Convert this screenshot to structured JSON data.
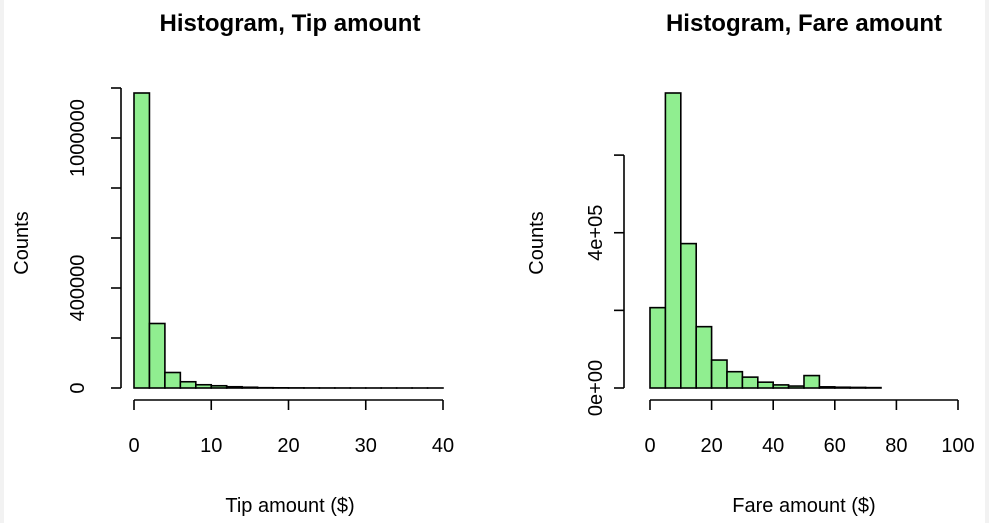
{
  "chart_data": [
    {
      "type": "bar",
      "title": "Histogram, Tip amount",
      "xlabel": "Tip amount ($)",
      "ylabel": "Counts",
      "xlim": [
        0,
        42
      ],
      "ylim": [
        0,
        1180000
      ],
      "xticks": [
        {
          "value": 0,
          "label": "0"
        },
        {
          "value": 10,
          "label": "10"
        },
        {
          "value": 20,
          "label": "20"
        },
        {
          "value": 30,
          "label": "30"
        },
        {
          "value": 40,
          "label": "40"
        }
      ],
      "yticks": [
        {
          "value": 0,
          "label": "0"
        },
        {
          "value": 200000,
          "label": ""
        },
        {
          "value": 400000,
          "label": "400000"
        },
        {
          "value": 600000,
          "label": ""
        },
        {
          "value": 800000,
          "label": ""
        },
        {
          "value": 1000000,
          "label": "1000000"
        },
        {
          "value": 1200000,
          "label": ""
        }
      ],
      "bins": [
        {
          "start": 0,
          "end": 2,
          "count": 1180000
        },
        {
          "start": 2,
          "end": 4,
          "count": 258000
        },
        {
          "start": 4,
          "end": 6,
          "count": 62000
        },
        {
          "start": 6,
          "end": 8,
          "count": 25000
        },
        {
          "start": 8,
          "end": 10,
          "count": 13000
        },
        {
          "start": 10,
          "end": 12,
          "count": 9000
        },
        {
          "start": 12,
          "end": 14,
          "count": 5000
        },
        {
          "start": 14,
          "end": 16,
          "count": 3000
        },
        {
          "start": 16,
          "end": 18,
          "count": 1200
        },
        {
          "start": 18,
          "end": 20,
          "count": 800
        },
        {
          "start": 20,
          "end": 22,
          "count": 500
        },
        {
          "start": 22,
          "end": 24,
          "count": 300
        },
        {
          "start": 24,
          "end": 26,
          "count": 200
        },
        {
          "start": 26,
          "end": 28,
          "count": 150
        },
        {
          "start": 28,
          "end": 30,
          "count": 100
        },
        {
          "start": 30,
          "end": 32,
          "count": 80
        },
        {
          "start": 32,
          "end": 34,
          "count": 60
        },
        {
          "start": 34,
          "end": 36,
          "count": 50
        },
        {
          "start": 36,
          "end": 38,
          "count": 40
        },
        {
          "start": 38,
          "end": 40,
          "count": 30
        }
      ]
    },
    {
      "type": "bar",
      "title": "Histogram, Fare amount",
      "xlabel": "Fare amount ($)",
      "ylabel": "Counts",
      "xlim": [
        0,
        102
      ],
      "ylim": [
        0,
        760000
      ],
      "xticks": [
        {
          "value": 0,
          "label": "0"
        },
        {
          "value": 20,
          "label": "20"
        },
        {
          "value": 40,
          "label": "40"
        },
        {
          "value": 60,
          "label": "60"
        },
        {
          "value": 80,
          "label": "80"
        },
        {
          "value": 100,
          "label": "100"
        }
      ],
      "yticks": [
        {
          "value": 0,
          "label": "0e+00"
        },
        {
          "value": 200000,
          "label": ""
        },
        {
          "value": 400000,
          "label": "4e+05"
        },
        {
          "value": 600000,
          "label": ""
        }
      ],
      "bins": [
        {
          "start": 0,
          "end": 5,
          "count": 207000
        },
        {
          "start": 5,
          "end": 10,
          "count": 760000
        },
        {
          "start": 10,
          "end": 15,
          "count": 372000
        },
        {
          "start": 15,
          "end": 20,
          "count": 158000
        },
        {
          "start": 20,
          "end": 25,
          "count": 72000
        },
        {
          "start": 25,
          "end": 30,
          "count": 42000
        },
        {
          "start": 30,
          "end": 35,
          "count": 28000
        },
        {
          "start": 35,
          "end": 40,
          "count": 15000
        },
        {
          "start": 40,
          "end": 45,
          "count": 8000
        },
        {
          "start": 45,
          "end": 50,
          "count": 5000
        },
        {
          "start": 50,
          "end": 55,
          "count": 32000
        },
        {
          "start": 55,
          "end": 60,
          "count": 3000
        },
        {
          "start": 60,
          "end": 65,
          "count": 2000
        },
        {
          "start": 65,
          "end": 70,
          "count": 1500
        },
        {
          "start": 70,
          "end": 75,
          "count": 1000
        }
      ]
    }
  ]
}
